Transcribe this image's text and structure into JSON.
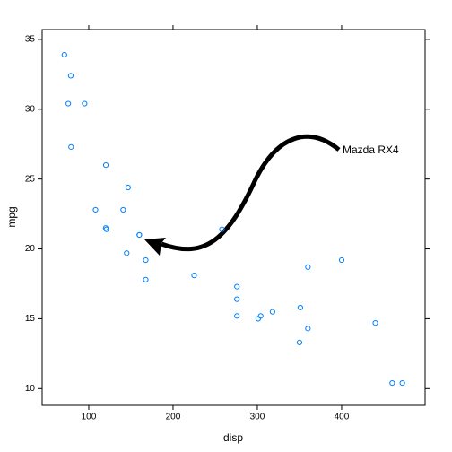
{
  "chart_data": {
    "type": "scatter",
    "x_label": "disp",
    "y_label": "mpg",
    "annotation": "Mazda RX4",
    "x": [
      160,
      160,
      108,
      258,
      360,
      225,
      360,
      146.7,
      140.8,
      167.6,
      167.6,
      275.8,
      275.8,
      275.8,
      472,
      460,
      440,
      78.7,
      75.7,
      71.1,
      120.1,
      318,
      304,
      350,
      400,
      79,
      120.3,
      95.1,
      351,
      145,
      301,
      121
    ],
    "series": [
      {
        "color": "#0080ff",
        "values": [
          21,
          21,
          22.8,
          21.4,
          18.7,
          18.1,
          14.3,
          24.4,
          22.8,
          19.2,
          17.8,
          16.4,
          17.3,
          15.2,
          10.4,
          10.4,
          14.7,
          32.4,
          30.4,
          33.9,
          21.5,
          15.5,
          15.2,
          13.3,
          19.2,
          27.3,
          26,
          30.4,
          15.8,
          19.7,
          15,
          21.4
        ]
      }
    ],
    "xlim": [
      44.7,
      499
    ],
    "ylim": [
      8.8,
      35.7
    ],
    "xticks": [
      100,
      200,
      300,
      400
    ],
    "yticks": [
      10,
      15,
      20,
      25,
      30,
      35
    ]
  }
}
